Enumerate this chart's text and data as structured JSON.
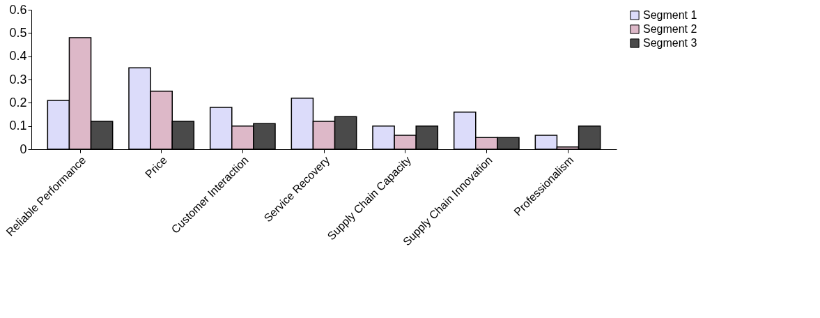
{
  "chart_data": {
    "type": "bar",
    "categories": [
      "Reliable Performance",
      "Price",
      "Customer Interaction",
      "Service Recovery",
      "Supply Chain Capacity",
      "Supply Chain Innovation",
      "Professionalism"
    ],
    "series": [
      {
        "name": "Segment  1",
        "color": "#dcdcfa",
        "values": [
          0.21,
          0.35,
          0.18,
          0.22,
          0.1,
          0.16,
          0.06
        ]
      },
      {
        "name": "Segment 2",
        "color": "#ddb8c8",
        "values": [
          0.48,
          0.25,
          0.1,
          0.12,
          0.06,
          0.05,
          0.01
        ]
      },
      {
        "name": "Segment 3",
        "color": "#4a4a4a",
        "values": [
          0.12,
          0.12,
          0.11,
          0.14,
          0.1,
          0.05,
          0.1
        ]
      }
    ],
    "ylim": [
      0,
      0.6
    ],
    "yticks": [
      0,
      0.1,
      0.2,
      0.3,
      0.4,
      0.5,
      0.6
    ],
    "grid": false,
    "legend": "right"
  }
}
